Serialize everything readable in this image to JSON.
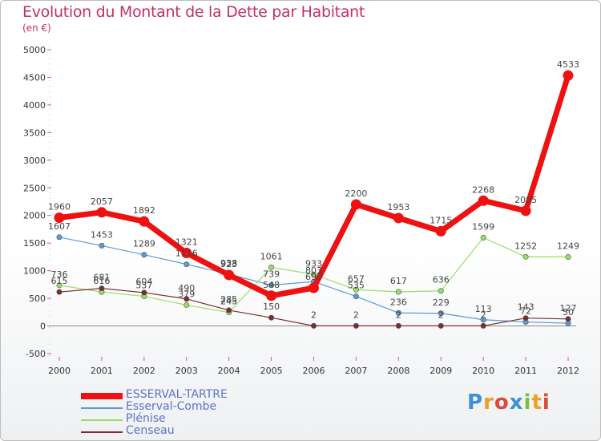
{
  "title": "Evolution du Montant de la Dette par Habitant",
  "subtitle": "(en €)",
  "logo": "Proxiti",
  "chart_data": {
    "type": "line",
    "title": "Evolution du Montant de la Dette par Habitant",
    "subtitle": "(en €)",
    "xlabel": "",
    "ylabel": "",
    "x": [
      "2000",
      "2001",
      "2002",
      "2003",
      "2004",
      "2005",
      "2006",
      "2007",
      "2008",
      "2009",
      "2010",
      "2011",
      "2012"
    ],
    "yticks": [
      "-500",
      "0",
      "500",
      "1000",
      "1500",
      "2000",
      "2500",
      "3000",
      "3500",
      "4000",
      "4500",
      "5000"
    ],
    "ylim": [
      -500,
      5000
    ],
    "grid": false,
    "legend_position": "bottom-left",
    "series": [
      {
        "name": "ESSERVAL-TARTRE",
        "color": "#ee1111",
        "width": 7,
        "values": [
          1960,
          2057,
          1892,
          1321,
          923,
          548,
          690,
          2200,
          1953,
          1715,
          2268,
          2085,
          4533
        ],
        "labels": [
          "1960",
          "2057",
          "1892",
          "1321",
          "923",
          "548",
          "690",
          "2200",
          "1953",
          "1715",
          "2268",
          "2085",
          "4533"
        ]
      },
      {
        "name": "Esserval-Combe",
        "color": "#5b9bd5",
        "width": 1.2,
        "values": [
          1607,
          1453,
          1289,
          1116,
          938,
          739,
          803,
          535,
          236,
          229,
          113,
          72,
          50
        ],
        "labels": [
          "1607",
          "1453",
          "1289",
          "1116",
          "938",
          "739",
          "803",
          "535",
          "236",
          "229",
          "113",
          "72",
          "50"
        ]
      },
      {
        "name": "Plénise",
        "color": "#99dd66",
        "width": 1.2,
        "values": [
          736,
          616,
          537,
          379,
          245,
          1061,
          933,
          657,
          617,
          636,
          1599,
          1252,
          1249
        ],
        "labels": [
          "736",
          "616",
          "537",
          "379",
          "245",
          "1061",
          "933",
          "657",
          "617",
          "636",
          "1599",
          "1252",
          "1249"
        ]
      },
      {
        "name": "Censeau",
        "color": "#7a2e2e",
        "width": 1.2,
        "values": [
          615,
          681,
          604,
          490,
          285,
          150,
          2,
          2,
          2,
          2,
          2,
          143,
          127
        ],
        "labels": [
          "615",
          "681",
          "604",
          "490",
          "285",
          "150",
          "2",
          "2",
          "2",
          "2",
          "2",
          "143",
          "127"
        ]
      }
    ]
  }
}
